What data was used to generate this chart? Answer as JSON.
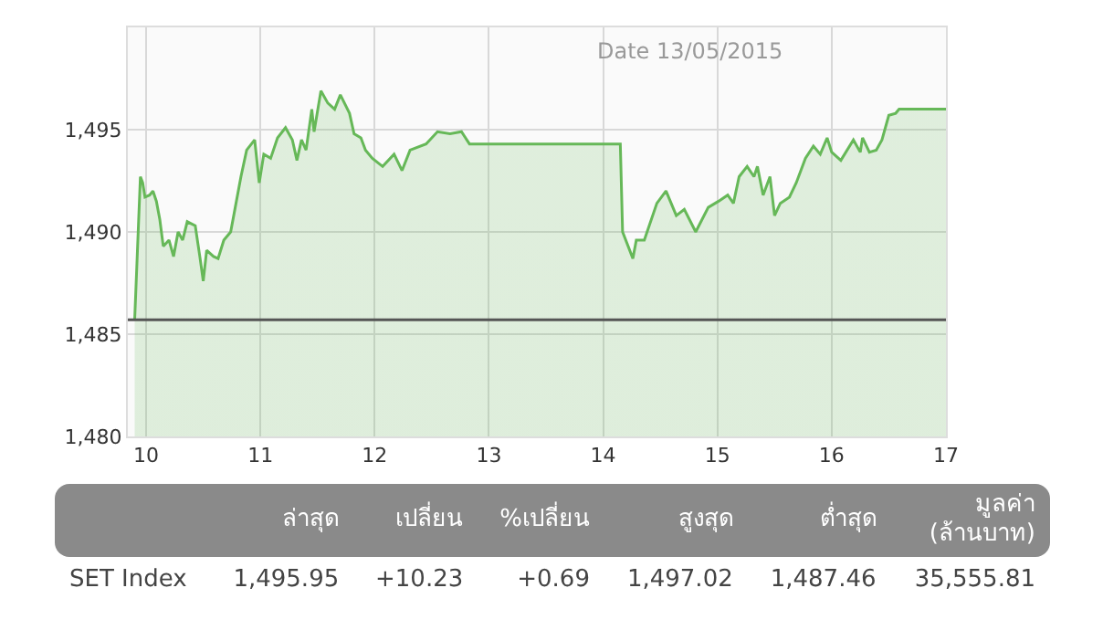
{
  "chart_data": [
    {
      "type": "area",
      "annotations": [
        "Date 13/05/2015"
      ],
      "series": [
        {
          "color": "#66b858",
          "x": [
            9.9,
            9.95,
            9.97,
            9.99,
            10.03,
            10.06,
            10.09,
            10.12,
            10.15,
            10.2,
            10.24,
            10.28,
            10.32,
            10.36,
            10.43,
            10.47,
            10.5,
            10.53,
            10.59,
            10.63,
            10.68,
            10.74,
            10.78,
            10.83,
            10.88,
            10.95,
            10.99,
            11.03,
            11.09,
            11.15,
            11.22,
            11.28,
            11.32,
            11.36,
            11.4,
            11.45,
            11.47,
            11.53,
            11.59,
            11.65,
            11.7,
            11.78,
            11.82,
            11.88,
            11.92,
            11.98,
            12.07,
            12.17,
            12.24,
            12.31,
            12.45,
            12.55,
            12.66,
            12.76,
            12.83,
            14.15,
            14.17,
            14.26,
            14.29,
            14.36,
            14.47,
            14.55,
            14.64,
            14.71,
            14.81,
            14.92,
            15.01,
            15.09,
            15.14,
            15.19,
            15.26,
            15.32,
            15.35,
            15.4,
            15.46,
            15.5,
            15.55,
            15.63,
            15.69,
            15.77,
            15.84,
            15.9,
            15.96,
            16.0,
            16.08,
            16.19,
            16.25,
            16.27,
            16.33,
            16.39,
            16.44,
            16.5,
            16.56,
            16.59,
            17.0
          ],
          "values": [
            1485.7,
            1492.7,
            1492.4,
            1491.7,
            1491.8,
            1492.0,
            1491.5,
            1490.6,
            1489.3,
            1489.6,
            1488.8,
            1490.0,
            1489.6,
            1490.5,
            1490.3,
            1488.8,
            1487.6,
            1489.1,
            1488.8,
            1488.7,
            1489.6,
            1490.0,
            1491.2,
            1492.7,
            1494.0,
            1494.5,
            1492.4,
            1493.8,
            1493.6,
            1494.6,
            1495.1,
            1494.5,
            1493.5,
            1494.5,
            1494.0,
            1496.0,
            1494.9,
            1496.9,
            1496.3,
            1496.0,
            1496.7,
            1495.8,
            1494.8,
            1494.6,
            1494.0,
            1493.6,
            1493.2,
            1493.8,
            1493.0,
            1494.0,
            1494.3,
            1494.9,
            1494.8,
            1494.9,
            1494.3,
            1494.3,
            1490.0,
            1488.7,
            1489.6,
            1489.6,
            1491.4,
            1492.0,
            1490.8,
            1491.1,
            1490.0,
            1491.2,
            1491.5,
            1491.8,
            1491.4,
            1492.7,
            1493.2,
            1492.7,
            1493.2,
            1491.8,
            1492.7,
            1490.8,
            1491.4,
            1491.7,
            1492.4,
            1493.6,
            1494.2,
            1493.8,
            1494.6,
            1493.9,
            1493.5,
            1494.5,
            1493.9,
            1494.6,
            1493.9,
            1494.0,
            1494.5,
            1495.7,
            1495.8,
            1496.0,
            1496.0
          ]
        }
      ],
      "xlim": [
        9.84,
        17
      ],
      "xticks": [
        10,
        11,
        12,
        13,
        14,
        15,
        16,
        17
      ],
      "ylim": [
        1480,
        1500
      ],
      "yticks": [
        {
          "value": 1480,
          "label": "1,480"
        },
        {
          "value": 1485,
          "label": "1,485"
        },
        {
          "value": 1490,
          "label": "1,490"
        },
        {
          "value": 1495,
          "label": "1,495"
        },
        {
          "value": 1500,
          "label": null
        }
      ],
      "ref_lines": [
        {
          "axis": "y",
          "value": 1485.7,
          "color": "#555555"
        }
      ],
      "grid": true
    },
    {
      "type": "other",
      "categories": [
        "ล่าสุด",
        "เปลี่ยน",
        "%เปลี่ยน",
        "สูงสุด",
        "ต่ำสุด",
        "มูลค่า\n(ล้านบาท)"
      ],
      "y_categories": [
        "SET Index"
      ],
      "value_labels": [
        "1,495.95",
        "+10.23",
        "+0.69",
        "1,497.02",
        "1,487.46",
        "35,555.81"
      ]
    }
  ]
}
